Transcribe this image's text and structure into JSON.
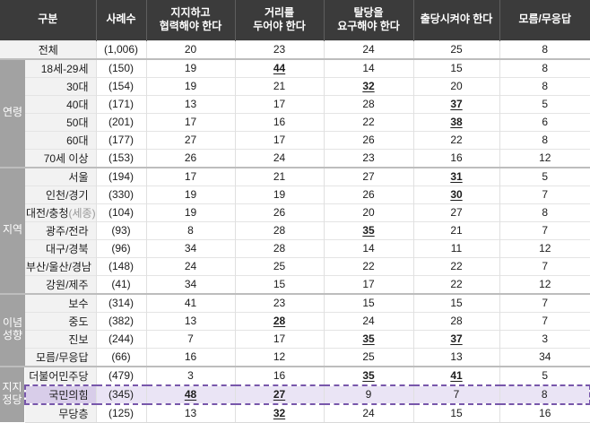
{
  "colors": {
    "header_bg": "#3b3b3b",
    "header_text": "#ffffff",
    "group_bg": "#a2a2a2",
    "row_label_bg": "#f2f2f2",
    "highlight_bg": "#eae4f5",
    "highlight_label_bg": "#d8cde9",
    "highlight_border": "#7857ab",
    "grid_line": "#e4e4e4",
    "section_line": "#bdbdbd"
  },
  "chart_data": {
    "type": "table",
    "header": {
      "gubun": "구분",
      "sample": "사례수",
      "opinions": [
        [
          "지지하고",
          "협력해야 한다"
        ],
        [
          "거리를",
          "두어야 한다"
        ],
        [
          "탈당을",
          "요구해야 한다"
        ],
        [
          "출당시켜야 한다"
        ],
        [
          "모름/무응답"
        ]
      ]
    },
    "total_row": {
      "label": "전체",
      "n": "(1,006)",
      "values": [
        20,
        23,
        24,
        25,
        8
      ],
      "underline": []
    },
    "groups": [
      {
        "label_lines": [
          "연령"
        ],
        "rows": [
          {
            "label": "18세-29세",
            "n": "(150)",
            "values": [
              19,
              44,
              14,
              15,
              8
            ],
            "underline": [
              1
            ]
          },
          {
            "label": "30대",
            "n": "(154)",
            "values": [
              19,
              21,
              32,
              20,
              8
            ],
            "underline": [
              2
            ]
          },
          {
            "label": "40대",
            "n": "(171)",
            "values": [
              13,
              17,
              28,
              37,
              5
            ],
            "underline": [
              3
            ]
          },
          {
            "label": "50대",
            "n": "(201)",
            "values": [
              17,
              16,
              22,
              38,
              6
            ],
            "underline": [
              3
            ]
          },
          {
            "label": "60대",
            "n": "(177)",
            "values": [
              27,
              17,
              26,
              22,
              8
            ],
            "underline": []
          },
          {
            "label": "70세 이상",
            "n": "(153)",
            "values": [
              26,
              24,
              23,
              16,
              12
            ],
            "underline": []
          }
        ]
      },
      {
        "label_lines": [
          "지역"
        ],
        "rows": [
          {
            "label": "서울",
            "n": "(194)",
            "values": [
              17,
              21,
              27,
              31,
              5
            ],
            "underline": [
              3
            ]
          },
          {
            "label": "인천/경기",
            "n": "(330)",
            "values": [
              19,
              19,
              26,
              30,
              7
            ],
            "underline": [
              3
            ]
          },
          {
            "label": "대전/충청",
            "label_suffix": "(세종)",
            "n": "(104)",
            "values": [
              19,
              26,
              20,
              27,
              8
            ],
            "underline": []
          },
          {
            "label": "광주/전라",
            "n": "(93)",
            "values": [
              8,
              28,
              35,
              21,
              7
            ],
            "underline": [
              2
            ]
          },
          {
            "label": "대구/경북",
            "n": "(96)",
            "values": [
              34,
              28,
              14,
              11,
              12
            ],
            "underline": []
          },
          {
            "label": "부산/울산/경남",
            "n": "(148)",
            "values": [
              24,
              25,
              22,
              22,
              7
            ],
            "underline": []
          },
          {
            "label": "강원/제주",
            "n": "(41)",
            "values": [
              34,
              15,
              17,
              22,
              12
            ],
            "underline": []
          }
        ]
      },
      {
        "label_lines": [
          "이념",
          "성향"
        ],
        "rows": [
          {
            "label": "보수",
            "n": "(314)",
            "values": [
              41,
              23,
              15,
              15,
              7
            ],
            "underline": []
          },
          {
            "label": "중도",
            "n": "(382)",
            "values": [
              13,
              28,
              24,
              28,
              7
            ],
            "underline": [
              1
            ]
          },
          {
            "label": "진보",
            "n": "(244)",
            "values": [
              7,
              17,
              35,
              37,
              3
            ],
            "underline": [
              2,
              3
            ]
          },
          {
            "label": "모름/무응답",
            "n": "(66)",
            "values": [
              16,
              12,
              25,
              13,
              34
            ],
            "underline": []
          }
        ]
      },
      {
        "label_lines": [
          "지지",
          "정당"
        ],
        "rows": [
          {
            "label": "더불어민주당",
            "n": "(479)",
            "values": [
              3,
              16,
              35,
              41,
              5
            ],
            "underline": [
              2,
              3
            ]
          },
          {
            "label": "국민의힘",
            "n": "(345)",
            "values": [
              48,
              27,
              9,
              7,
              8
            ],
            "underline": [
              0,
              1
            ],
            "highlight": true
          },
          {
            "label": "무당층",
            "n": "(125)",
            "values": [
              13,
              32,
              24,
              15,
              16
            ],
            "underline": [
              1
            ]
          }
        ]
      }
    ]
  }
}
